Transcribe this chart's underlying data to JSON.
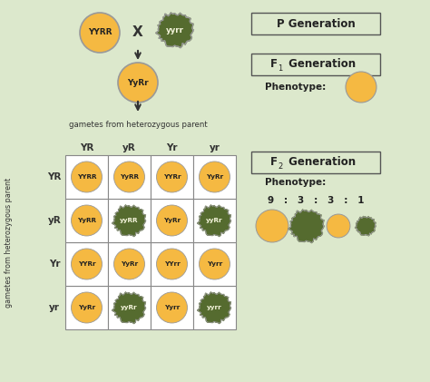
{
  "background_color": "#dce8cc",
  "orange_color": "#f5b942",
  "green_color": "#556b2f",
  "text_color": "#222222",
  "p1_label": "YYRR",
  "p2_label": "yyrr",
  "f1_label": "YyRr",
  "gametes_top_label": "gametes from heterozygous parent",
  "gametes_side_label": "gametes from heterozygous parent",
  "col_headers": [
    "YR",
    "yR",
    "Yr",
    "yr"
  ],
  "row_headers": [
    "YR",
    "yR",
    "Yr",
    "yr"
  ],
  "grid_cells": [
    [
      "YYRR",
      "YyRR",
      "YYRr",
      "YyRr"
    ],
    [
      "YyRR",
      "yyRR",
      "YyRr",
      "yyRr"
    ],
    [
      "YYRr",
      "YyRr",
      "YYrr",
      "Yyrr"
    ],
    [
      "YyRr",
      "yyRr",
      "Yyrr",
      "yyrr"
    ]
  ],
  "cell_colors": [
    [
      "orange",
      "orange",
      "orange",
      "orange"
    ],
    [
      "orange",
      "green",
      "orange",
      "green"
    ],
    [
      "orange",
      "orange",
      "orange",
      "orange"
    ],
    [
      "orange",
      "green",
      "orange",
      "green"
    ]
  ],
  "p_gen_label": "P Generation",
  "f1_gen_label": "F",
  "f1_sub": "1",
  "f1_gen_suffix": " Generation",
  "f2_gen_label": "F",
  "f2_sub": "2",
  "f2_gen_suffix": " Generation",
  "phenotype_label": "Phenotype:",
  "ratio_label": "9   :   3   :   3   :   1",
  "phenotype_colors_f2": [
    "orange",
    "green",
    "orange",
    "green"
  ],
  "phenotype_sizes_f2": [
    1.0,
    1.0,
    0.72,
    0.58
  ]
}
